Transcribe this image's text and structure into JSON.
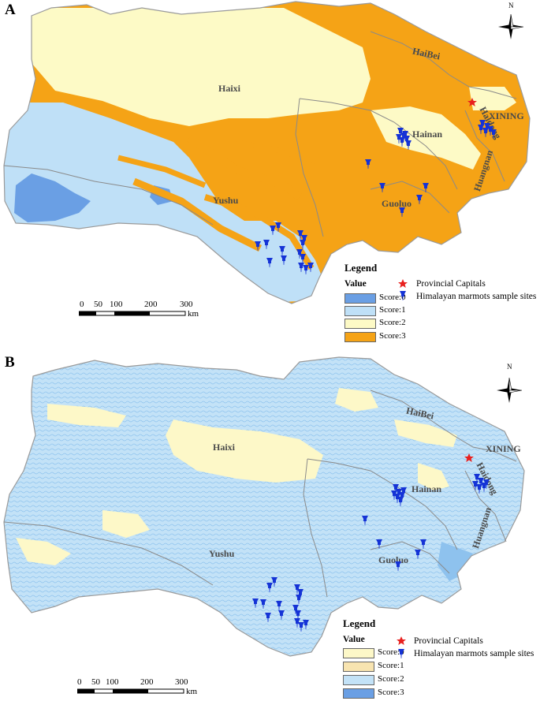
{
  "panels": [
    {
      "letter": "A",
      "legend": {
        "title": "Legend",
        "value_header": "Value",
        "items": [
          {
            "label": "Score:0",
            "color": "#6a9fe4"
          },
          {
            "label": "Score:1",
            "color": "#bfe0f7"
          },
          {
            "label": "Score:2",
            "color": "#fdfac6"
          },
          {
            "label": "Score:3",
            "color": "#f5a316"
          }
        ]
      },
      "map_colors": {
        "base": "#f5a316",
        "low": "#bfe0f7",
        "plateau": "#fdfac6",
        "dark": "#6a9fe4"
      }
    },
    {
      "letter": "B",
      "legend": {
        "title": "Legend",
        "value_header": "Value",
        "items": [
          {
            "label": "Score:0",
            "color": "#fdf8c8"
          },
          {
            "label": "Score:1",
            "color": "#f8e4b0"
          },
          {
            "label": "Score:2",
            "color": "#c3e2f7"
          },
          {
            "label": "Score:3",
            "color": "#6a9fe4"
          }
        ]
      },
      "map_colors": {
        "base": "#c3e2f7",
        "low": "#fdf8c8",
        "plateau": "#fdf8c8",
        "dark": "#8ec2ee"
      }
    }
  ],
  "regions": {
    "haixi": "Haixi",
    "haibei": "HaiBei",
    "xining": "XINING",
    "haidong": "Haidong",
    "hainan": "Hainan",
    "huangnan": "Huangnan",
    "guoluo": "Guoluo",
    "yushu": "Yushu"
  },
  "symbols": {
    "capital_label": "Provincial Capitals",
    "capital_color": "#e8201e",
    "sites_label": "Himalayan marmots sample sites",
    "sites_color": "#1533d6"
  },
  "scale": {
    "ticks": [
      "0",
      "50",
      "100",
      "200",
      "300"
    ],
    "unit": "km"
  },
  "north": "N"
}
